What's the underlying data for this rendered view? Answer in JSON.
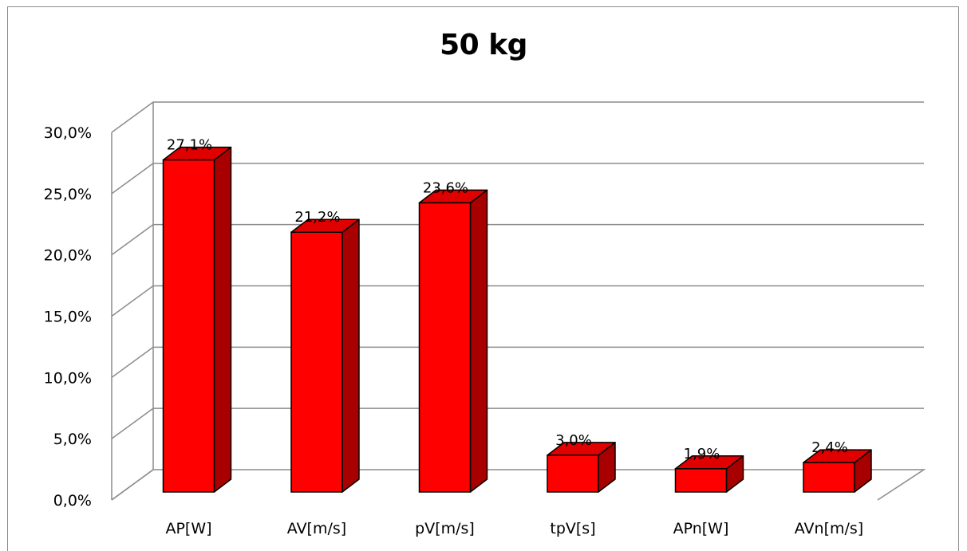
{
  "chart_data": {
    "type": "bar",
    "title": "50 kg",
    "categories": [
      "AP[W]",
      "AV[m/s]",
      "pV[m/s]",
      "tpV[s]",
      "APn[W]",
      "AVn[m/s]"
    ],
    "values": [
      27.1,
      21.2,
      23.6,
      3.0,
      1.9,
      2.4
    ],
    "data_labels": [
      "27,1%",
      "21,2%",
      "23,6%",
      "3,0%",
      "1,9%",
      "2,4%"
    ],
    "y_ticks": [
      "0,0%",
      "5,0%",
      "10,0%",
      "15,0%",
      "20,0%",
      "25,0%",
      "30,0%"
    ],
    "ylim": [
      0,
      30
    ],
    "grid": true,
    "legend": "none",
    "style": "3d-column",
    "colors": {
      "bar_front": "#ff0000",
      "bar_side": "#a80000",
      "bar_top": "#e00000",
      "grid": "#8c8c8c"
    }
  }
}
